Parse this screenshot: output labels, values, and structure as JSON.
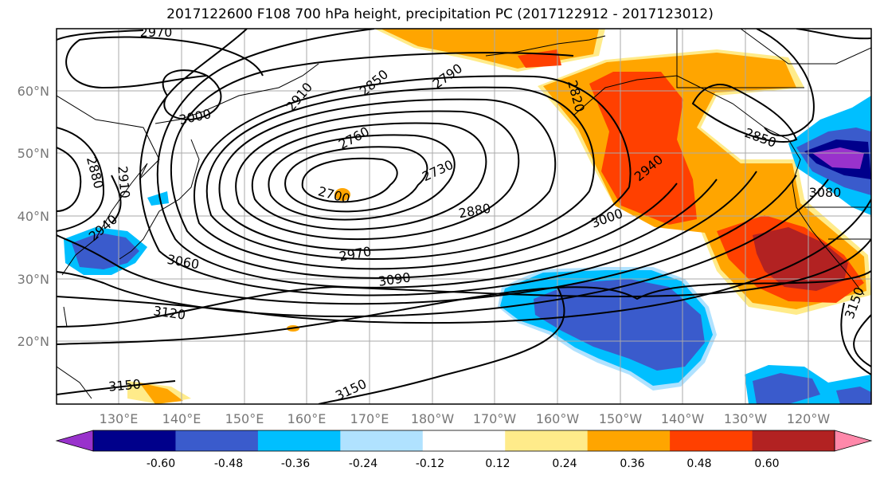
{
  "title": "2017122600 F108 700 hPa height, precipitation PC (2017122912 - 2017123012)",
  "lat_labels": [
    "60°N",
    "50°N",
    "40°N",
    "30°N",
    "20°N"
  ],
  "lon_labels": [
    "130°E",
    "140°E",
    "150°E",
    "160°E",
    "170°E",
    "180°W",
    "170°W",
    "160°W",
    "150°W",
    "140°W",
    "130°W",
    "120°W"
  ],
  "contour_labels": [
    "2970",
    "3000",
    "2910",
    "2850",
    "2790",
    "2820",
    "2760",
    "2730",
    "2700",
    "2880",
    "2940",
    "3000",
    "2970",
    "3060",
    "3090",
    "3120",
    "3150",
    "3150",
    "2880",
    "2910",
    "2940",
    "3080",
    "2850",
    "3150"
  ],
  "colorbar": {
    "ticks": [
      "-0.60",
      "-0.48",
      "-0.36",
      "-0.24",
      "-0.12",
      "0.12",
      "0.24",
      "0.36",
      "0.48",
      "0.60"
    ],
    "colors": [
      "#9932CC",
      "#00008B",
      "#3A5BCC",
      "#00BFFF",
      "#B0E2FF",
      "#FFFFFF",
      "#FFEB8A",
      "#FFA500",
      "#FF4000",
      "#B22222",
      "#FF88AA"
    ]
  }
}
